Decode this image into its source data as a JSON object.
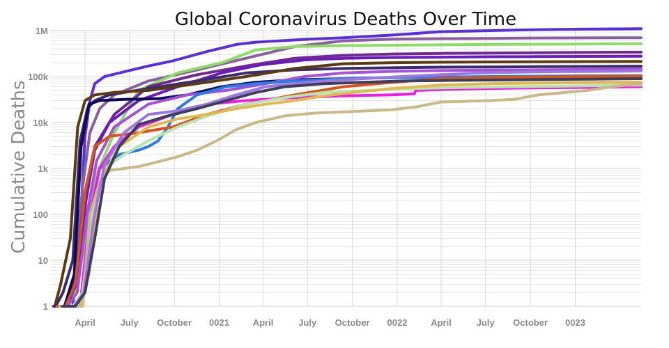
{
  "chart_data": {
    "type": "line",
    "title": "Global Coronavirus Deaths Over Time",
    "xlabel": "",
    "ylabel": "Cumulative Deaths",
    "yscale": "log",
    "ylim": [
      1,
      1000000
    ],
    "xlim": [
      0,
      1210
    ],
    "x_unit": "days since 2020-01-22",
    "y_ticks": [
      {
        "value": 1,
        "label": "1"
      },
      {
        "value": 10,
        "label": "10"
      },
      {
        "value": 100,
        "label": "100"
      },
      {
        "value": 1000,
        "label": "1k"
      },
      {
        "value": 10000,
        "label": "10k"
      },
      {
        "value": 100000,
        "label": "100k"
      },
      {
        "value": 1000000,
        "label": "1M"
      }
    ],
    "x_ticks": [
      {
        "value": 70,
        "label": "April"
      },
      {
        "value": 161,
        "label": "July"
      },
      {
        "value": 253,
        "label": "October"
      },
      {
        "value": 345,
        "label": "0021"
      },
      {
        "value": 435,
        "label": "April"
      },
      {
        "value": 526,
        "label": "July"
      },
      {
        "value": 618,
        "label": "October"
      },
      {
        "value": 710,
        "label": "0022"
      },
      {
        "value": 800,
        "label": "April"
      },
      {
        "value": 891,
        "label": "July"
      },
      {
        "value": 983,
        "label": "October"
      },
      {
        "value": 1075,
        "label": "0023"
      }
    ],
    "series": [
      {
        "color": "#5a2fd6",
        "x": [
          5,
          20,
          32,
          45,
          60,
          70,
          80,
          90,
          110,
          140,
          200,
          250,
          320,
          380,
          420,
          470,
          530,
          600,
          700,
          800,
          900,
          1000,
          1100,
          1210
        ],
        "y": [
          1,
          1,
          1,
          1,
          50,
          5000,
          30000,
          70000,
          100000,
          120000,
          170000,
          220000,
          350000,
          500000,
          560000,
          600000,
          650000,
          700000,
          800000,
          950000,
          1000000,
          1050000,
          1080000,
          1100000
        ]
      },
      {
        "color": "#8a5fa0",
        "x": [
          10,
          30,
          50,
          65,
          80,
          100,
          130,
          200,
          300,
          400,
          500,
          600,
          700,
          800,
          900,
          1000,
          1100,
          1210
        ],
        "y": [
          1,
          1,
          5,
          400,
          6000,
          20000,
          40000,
          80000,
          140000,
          250000,
          450000,
          600000,
          650000,
          670000,
          680000,
          690000,
          695000,
          700000
        ]
      },
      {
        "color": "#8fdb6a",
        "x": [
          15,
          35,
          55,
          75,
          95,
          130,
          180,
          260,
          350,
          420,
          500,
          600,
          700,
          800,
          900,
          1000,
          1100,
          1210
        ],
        "y": [
          1,
          1,
          3,
          60,
          800,
          6000,
          50000,
          120000,
          200000,
          380000,
          450000,
          470000,
          480000,
          490000,
          500000,
          505000,
          510000,
          520000
        ]
      },
      {
        "color": "#6f2a8f",
        "x": [
          12,
          30,
          50,
          70,
          90,
          130,
          200,
          300,
          400,
          500,
          600,
          700,
          800,
          900,
          1000,
          1100,
          1210
        ],
        "y": [
          1,
          1,
          5,
          300,
          3000,
          15000,
          60000,
          110000,
          170000,
          250000,
          290000,
          310000,
          320000,
          325000,
          330000,
          335000,
          340000
        ]
      },
      {
        "color": "#6b1bb8",
        "x": [
          14,
          32,
          52,
          72,
          90,
          120,
          180,
          260,
          350,
          430,
          520,
          600,
          700,
          800,
          900,
          1000,
          1100,
          1210
        ],
        "y": [
          1,
          1,
          3,
          200,
          2500,
          10000,
          30000,
          60000,
          120000,
          180000,
          230000,
          250000,
          260000,
          265000,
          270000,
          272000,
          275000,
          278000
        ]
      },
      {
        "color": "#3a2a70",
        "x": [
          10,
          25,
          45,
          60,
          75,
          90,
          120,
          200,
          300,
          400,
          500,
          600,
          700,
          800,
          900,
          1000,
          1100,
          1210
        ],
        "y": [
          1,
          2,
          10,
          4000,
          20000,
          30000,
          40000,
          55000,
          80000,
          120000,
          140000,
          150000,
          155000,
          160000,
          162000,
          164000,
          166000,
          168000
        ]
      },
      {
        "color": "#5a3a10",
        "x": [
          8,
          20,
          40,
          55,
          70,
          90,
          130,
          200,
          300,
          400,
          500,
          600,
          700,
          800,
          900,
          1000,
          1100,
          1210
        ],
        "y": [
          1,
          3,
          30,
          8000,
          30000,
          40000,
          45000,
          50000,
          70000,
          100000,
          150000,
          190000,
          200000,
          205000,
          208000,
          210000,
          212000,
          214000
        ]
      },
      {
        "color": "#0b0b5a",
        "x": [
          10,
          28,
          48,
          62,
          78,
          100,
          150,
          220,
          280,
          350,
          420,
          500,
          600,
          700,
          800,
          900,
          1000,
          1100,
          1210
        ],
        "y": [
          1,
          1,
          5,
          3000,
          25000,
          30000,
          32000,
          33000,
          40000,
          60000,
          75000,
          85000,
          90000,
          95000,
          97000,
          98000,
          99000,
          100000,
          100000
        ]
      },
      {
        "color": "#a552d9",
        "x": [
          14,
          34,
          54,
          74,
          94,
          130,
          200,
          280,
          360,
          440,
          520,
          600,
          700,
          800,
          900,
          1000,
          1100,
          1210
        ],
        "y": [
          1,
          1,
          2,
          100,
          1500,
          8000,
          25000,
          40000,
          50000,
          70000,
          100000,
          120000,
          130000,
          135000,
          138000,
          140000,
          142000,
          145000
        ]
      },
      {
        "color": "#2f7be0",
        "x": [
          16,
          40,
          60,
          80,
          100,
          140,
          180,
          200,
          220,
          240,
          260,
          300,
          360,
          420,
          500,
          600,
          700,
          800,
          900,
          1000,
          1100,
          1210
        ],
        "y": [
          1,
          1,
          1,
          100,
          1000,
          2000,
          2500,
          3000,
          4000,
          8000,
          20000,
          40000,
          60000,
          70000,
          80000,
          90000,
          95000,
          98000,
          100000,
          102000,
          104000,
          105000
        ]
      },
      {
        "color": "#d4561c",
        "x": [
          12,
          30,
          50,
          70,
          90,
          120,
          180,
          250,
          320,
          400,
          500,
          600,
          700,
          800,
          900,
          1000,
          1100,
          1210
        ],
        "y": [
          1,
          1,
          3,
          300,
          3000,
          5000,
          6000,
          8000,
          15000,
          25000,
          40000,
          60000,
          75000,
          90000,
          95000,
          98000,
          100000,
          102000
        ]
      },
      {
        "color": "#ec1fe0",
        "x": [
          40,
          60,
          80,
          100,
          130,
          180,
          250,
          320,
          400,
          500,
          600,
          700,
          745,
          748,
          800,
          900,
          1000,
          1100,
          1210
        ],
        "y": [
          1,
          1,
          100,
          1000,
          3000,
          8000,
          15000,
          25000,
          30000,
          35000,
          38000,
          40000,
          42000,
          50000,
          52000,
          55000,
          57000,
          58000,
          60000
        ]
      },
      {
        "color": "#b8e3b0",
        "x": [
          20,
          45,
          65,
          85,
          110,
          150,
          200,
          260,
          330,
          400,
          480,
          560,
          650,
          750,
          850,
          950,
          1050,
          1150,
          1210
        ],
        "y": [
          1,
          1,
          2,
          100,
          1000,
          2000,
          4000,
          8000,
          15000,
          25000,
          35000,
          45000,
          50000,
          55000,
          58000,
          60000,
          62000,
          64000,
          65000
        ]
      },
      {
        "color": "#e0b852",
        "x": [
          18,
          40,
          60,
          78,
          100,
          140,
          200,
          260,
          320,
          380,
          440,
          500,
          560,
          620,
          700,
          800,
          900,
          1000,
          1100,
          1210
        ],
        "y": [
          1,
          1,
          1,
          5,
          500,
          3000,
          8000,
          12000,
          15000,
          20000,
          25000,
          30000,
          38000,
          45000,
          55000,
          65000,
          70000,
          72000,
          74000,
          75000
        ]
      },
      {
        "color": "#c8b88a",
        "x": [
          50,
          65,
          80,
          100,
          120,
          150,
          180,
          220,
          260,
          300,
          340,
          380,
          420,
          480,
          540,
          600,
          650,
          700,
          750,
          800,
          900,
          950,
          1000,
          1100,
          1150,
          1210
        ],
        "y": [
          1,
          1,
          100,
          500,
          900,
          1000,
          1100,
          1400,
          1800,
          2500,
          4000,
          7000,
          10000,
          14000,
          16000,
          17000,
          18000,
          19000,
          22000,
          28000,
          30000,
          32000,
          40000,
          50000,
          60000,
          70000
        ]
      },
      {
        "color": "#9d76e0",
        "x": [
          22,
          48,
          68,
          88,
          110,
          150,
          200,
          260,
          320,
          380,
          440,
          500,
          560,
          640,
          720,
          800,
          880,
          960,
          1050,
          1150,
          1210
        ],
        "y": [
          1,
          1,
          2,
          80,
          1200,
          6000,
          15000,
          18000,
          25000,
          40000,
          60000,
          70000,
          80000,
          90000,
          100000,
          110000,
          120000,
          125000,
          128000,
          130000,
          132000
        ]
      },
      {
        "color": "#3d3d5c",
        "x": [
          24,
          50,
          70,
          90,
          110,
          140,
          180,
          240,
          300,
          360,
          420,
          480,
          560,
          640,
          720,
          800,
          900,
          1000,
          1100,
          1210
        ],
        "y": [
          1,
          1,
          2,
          30,
          600,
          3000,
          9000,
          14000,
          20000,
          30000,
          45000,
          60000,
          70000,
          75000,
          80000,
          82000,
          84000,
          86000,
          88000,
          90000
        ]
      }
    ]
  }
}
